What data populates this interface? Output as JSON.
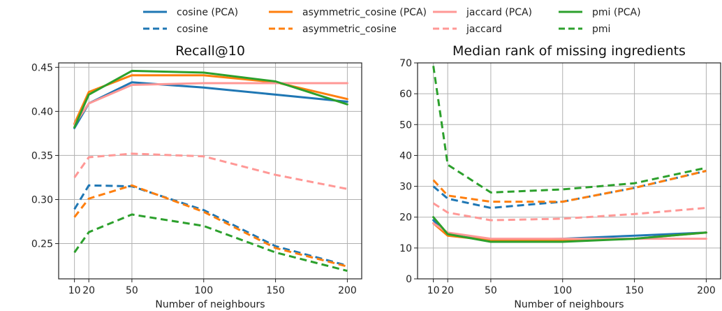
{
  "legend": {
    "entries": [
      {
        "label": "cosine (PCA)",
        "color": "#1f77b4",
        "dash": false
      },
      {
        "label": "cosine",
        "color": "#1f77b4",
        "dash": true
      },
      {
        "label": "asymmetric_cosine (PCA)",
        "color": "#ff7f0e",
        "dash": false
      },
      {
        "label": "asymmetric_cosine",
        "color": "#ff7f0e",
        "dash": true
      },
      {
        "label": "jaccard (PCA)",
        "color": "#ff9896",
        "dash": false
      },
      {
        "label": "jaccard",
        "color": "#ff9896",
        "dash": true
      },
      {
        "label": "pmi (PCA)",
        "color": "#2ca02c",
        "dash": false
      },
      {
        "label": "pmi",
        "color": "#2ca02c",
        "dash": true
      }
    ],
    "placement": "top-center"
  },
  "chart_data": [
    {
      "type": "line",
      "title": "Recall@10",
      "xlabel": "Number of neighbours",
      "ylabel": "",
      "grid": true,
      "x": [
        10,
        20,
        50,
        100,
        150,
        200
      ],
      "xlim": [
        -1,
        210
      ],
      "ylim": [
        0.21,
        0.455
      ],
      "xticks": [
        10,
        20,
        50,
        100,
        150,
        200
      ],
      "xtick_labels": [
        "10",
        "20",
        "50",
        "100",
        "150",
        "200"
      ],
      "yticks": [
        0.25,
        0.3,
        0.35,
        0.4,
        0.45
      ],
      "ytick_labels": [
        "0.25",
        "0.30",
        "0.35",
        "0.40",
        "0.45"
      ],
      "series": [
        {
          "name": "cosine (PCA)",
          "color": "#1f77b4",
          "dash": false,
          "values": [
            0.381,
            0.409,
            0.433,
            0.427,
            0.419,
            0.411
          ]
        },
        {
          "name": "cosine",
          "color": "#1f77b4",
          "dash": true,
          "values": [
            0.289,
            0.316,
            0.315,
            0.288,
            0.247,
            0.225
          ]
        },
        {
          "name": "asymmetric_cosine (PCA)",
          "color": "#ff7f0e",
          "dash": false,
          "values": [
            0.386,
            0.422,
            0.441,
            0.441,
            0.433,
            0.414
          ]
        },
        {
          "name": "asymmetric_cosine",
          "color": "#ff7f0e",
          "dash": true,
          "values": [
            0.28,
            0.301,
            0.316,
            0.286,
            0.245,
            0.224
          ]
        },
        {
          "name": "jaccard (PCA)",
          "color": "#ff9896",
          "dash": false,
          "values": [
            0.385,
            0.409,
            0.43,
            0.432,
            0.432,
            0.432
          ]
        },
        {
          "name": "jaccard",
          "color": "#ff9896",
          "dash": true,
          "values": [
            0.325,
            0.348,
            0.352,
            0.349,
            0.328,
            0.312
          ]
        },
        {
          "name": "pmi (PCA)",
          "color": "#2ca02c",
          "dash": false,
          "values": [
            0.382,
            0.419,
            0.446,
            0.444,
            0.434,
            0.408
          ]
        },
        {
          "name": "pmi",
          "color": "#2ca02c",
          "dash": true,
          "values": [
            0.24,
            0.263,
            0.283,
            0.27,
            0.24,
            0.219
          ]
        }
      ]
    },
    {
      "type": "line",
      "title": "Median rank of missing ingredients",
      "xlabel": "Number of neighbours",
      "ylabel": "",
      "grid": true,
      "x": [
        10,
        20,
        50,
        100,
        150,
        200
      ],
      "xlim": [
        -1,
        210
      ],
      "ylim": [
        0,
        70
      ],
      "xticks": [
        10,
        20,
        50,
        100,
        150,
        200
      ],
      "xtick_labels": [
        "10",
        "20",
        "50",
        "100",
        "150",
        "200"
      ],
      "yticks": [
        0,
        10,
        20,
        30,
        40,
        50,
        60,
        70
      ],
      "ytick_labels": [
        "0",
        "10",
        "20",
        "30",
        "40",
        "50",
        "60",
        "70"
      ],
      "series": [
        {
          "name": "cosine (PCA)",
          "color": "#1f77b4",
          "dash": false,
          "values": [
            19,
            14.5,
            12.5,
            13,
            14,
            15
          ]
        },
        {
          "name": "cosine",
          "color": "#1f77b4",
          "dash": true,
          "values": [
            30,
            26,
            23,
            25,
            29.5,
            35
          ]
        },
        {
          "name": "asymmetric_cosine (PCA)",
          "color": "#ff7f0e",
          "dash": false,
          "values": [
            18,
            14,
            12.5,
            12.5,
            13,
            15
          ]
        },
        {
          "name": "asymmetric_cosine",
          "color": "#ff7f0e",
          "dash": true,
          "values": [
            32,
            27,
            25,
            25,
            29.5,
            35
          ]
        },
        {
          "name": "jaccard (PCA)",
          "color": "#ff9896",
          "dash": false,
          "values": [
            18,
            15,
            13,
            13,
            13,
            13
          ]
        },
        {
          "name": "jaccard",
          "color": "#ff9896",
          "dash": true,
          "values": [
            24.5,
            21.5,
            19,
            19.5,
            21,
            23
          ]
        },
        {
          "name": "pmi (PCA)",
          "color": "#2ca02c",
          "dash": false,
          "values": [
            20,
            14.5,
            12,
            12,
            13,
            15
          ]
        },
        {
          "name": "pmi",
          "color": "#2ca02c",
          "dash": true,
          "values": [
            69,
            37,
            28,
            29,
            31,
            36
          ]
        }
      ]
    }
  ]
}
